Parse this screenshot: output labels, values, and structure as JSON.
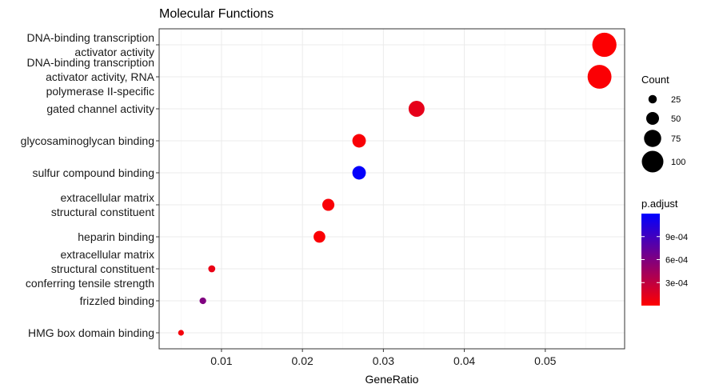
{
  "chart_data": {
    "type": "scatter",
    "title": "Molecular Functions",
    "xlabel": "GeneRatio",
    "ylabel": "",
    "xlim": [
      0.0023,
      0.0598
    ],
    "xticks": [
      0.01,
      0.02,
      0.03,
      0.04,
      0.05
    ],
    "xtick_labels": [
      "0.01",
      "0.02",
      "0.03",
      "0.04",
      "0.05"
    ],
    "grid": true,
    "categories": [
      {
        "lines": [
          "DNA-binding transcription",
          "activator activity"
        ],
        "x": 0.0573,
        "count": 115,
        "p_adjust": 1e-05
      },
      {
        "lines": [
          "DNA-binding transcription",
          "activator activity, RNA",
          "polymerase II-specific"
        ],
        "x": 0.0567,
        "count": 113,
        "p_adjust": 2e-05
      },
      {
        "lines": [
          "gated channel activity"
        ],
        "x": 0.0341,
        "count": 68,
        "p_adjust": 0.00012
      },
      {
        "lines": [
          "glycosaminoglycan binding"
        ],
        "x": 0.027,
        "count": 54,
        "p_adjust": 3e-05
      },
      {
        "lines": [
          "sulfur compound binding"
        ],
        "x": 0.027,
        "count": 54,
        "p_adjust": 0.00118
      },
      {
        "lines": [
          "extracellular matrix",
          "structural constituent"
        ],
        "x": 0.0232,
        "count": 46,
        "p_adjust": 3e-05
      },
      {
        "lines": [
          "heparin binding"
        ],
        "x": 0.0221,
        "count": 44,
        "p_adjust": 2e-05
      },
      {
        "lines": [
          "extracellular matrix",
          "structural constituent",
          "conferring tensile strength"
        ],
        "x": 0.0088,
        "count": 17,
        "p_adjust": 0.0001
      },
      {
        "lines": [
          "frizzled binding"
        ],
        "x": 0.0077,
        "count": 15,
        "p_adjust": 0.0006
      },
      {
        "lines": [
          "HMG box domain binding"
        ],
        "x": 0.005,
        "count": 10,
        "p_adjust": 5e-05
      }
    ],
    "legend_size": {
      "title": "Count",
      "values": [
        25,
        50,
        75,
        100
      ],
      "labels": [
        "25",
        "50",
        "75",
        "100"
      ]
    },
    "legend_color": {
      "title": "p.adjust",
      "min": 0.0,
      "max": 0.0012,
      "ticks": [
        0.0003,
        0.0006,
        0.0009
      ],
      "tick_labels": [
        "3e-04",
        "6e-04",
        "9e-04"
      ],
      "low_color": "#ff0000",
      "high_color": "#0000ff"
    },
    "legend_position": "right"
  }
}
